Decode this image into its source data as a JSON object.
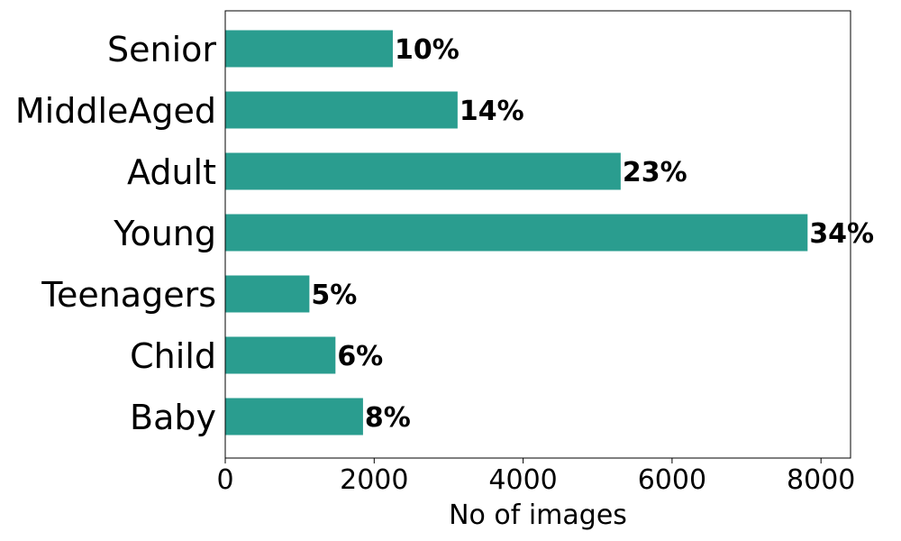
{
  "chart_data": {
    "type": "bar",
    "orientation": "horizontal",
    "categories": [
      "Baby",
      "Child",
      "Teenagers",
      "Young",
      "Adult",
      "MiddleAged",
      "Senior"
    ],
    "values": [
      1850,
      1480,
      1130,
      7820,
      5310,
      3120,
      2250
    ],
    "data_labels": [
      "8%",
      "6%",
      "5%",
      "34%",
      "23%",
      "14%",
      "10%"
    ],
    "xlabel": "No of images",
    "ylabel": "",
    "xlim": [
      0,
      8200
    ],
    "xticks": [
      0,
      2000,
      4000,
      6000,
      8000
    ],
    "xtick_labels": [
      "0",
      "2000",
      "4000",
      "6000",
      "8000"
    ],
    "bar_color": "#2a9d8f",
    "grid": false,
    "legend": "none"
  }
}
